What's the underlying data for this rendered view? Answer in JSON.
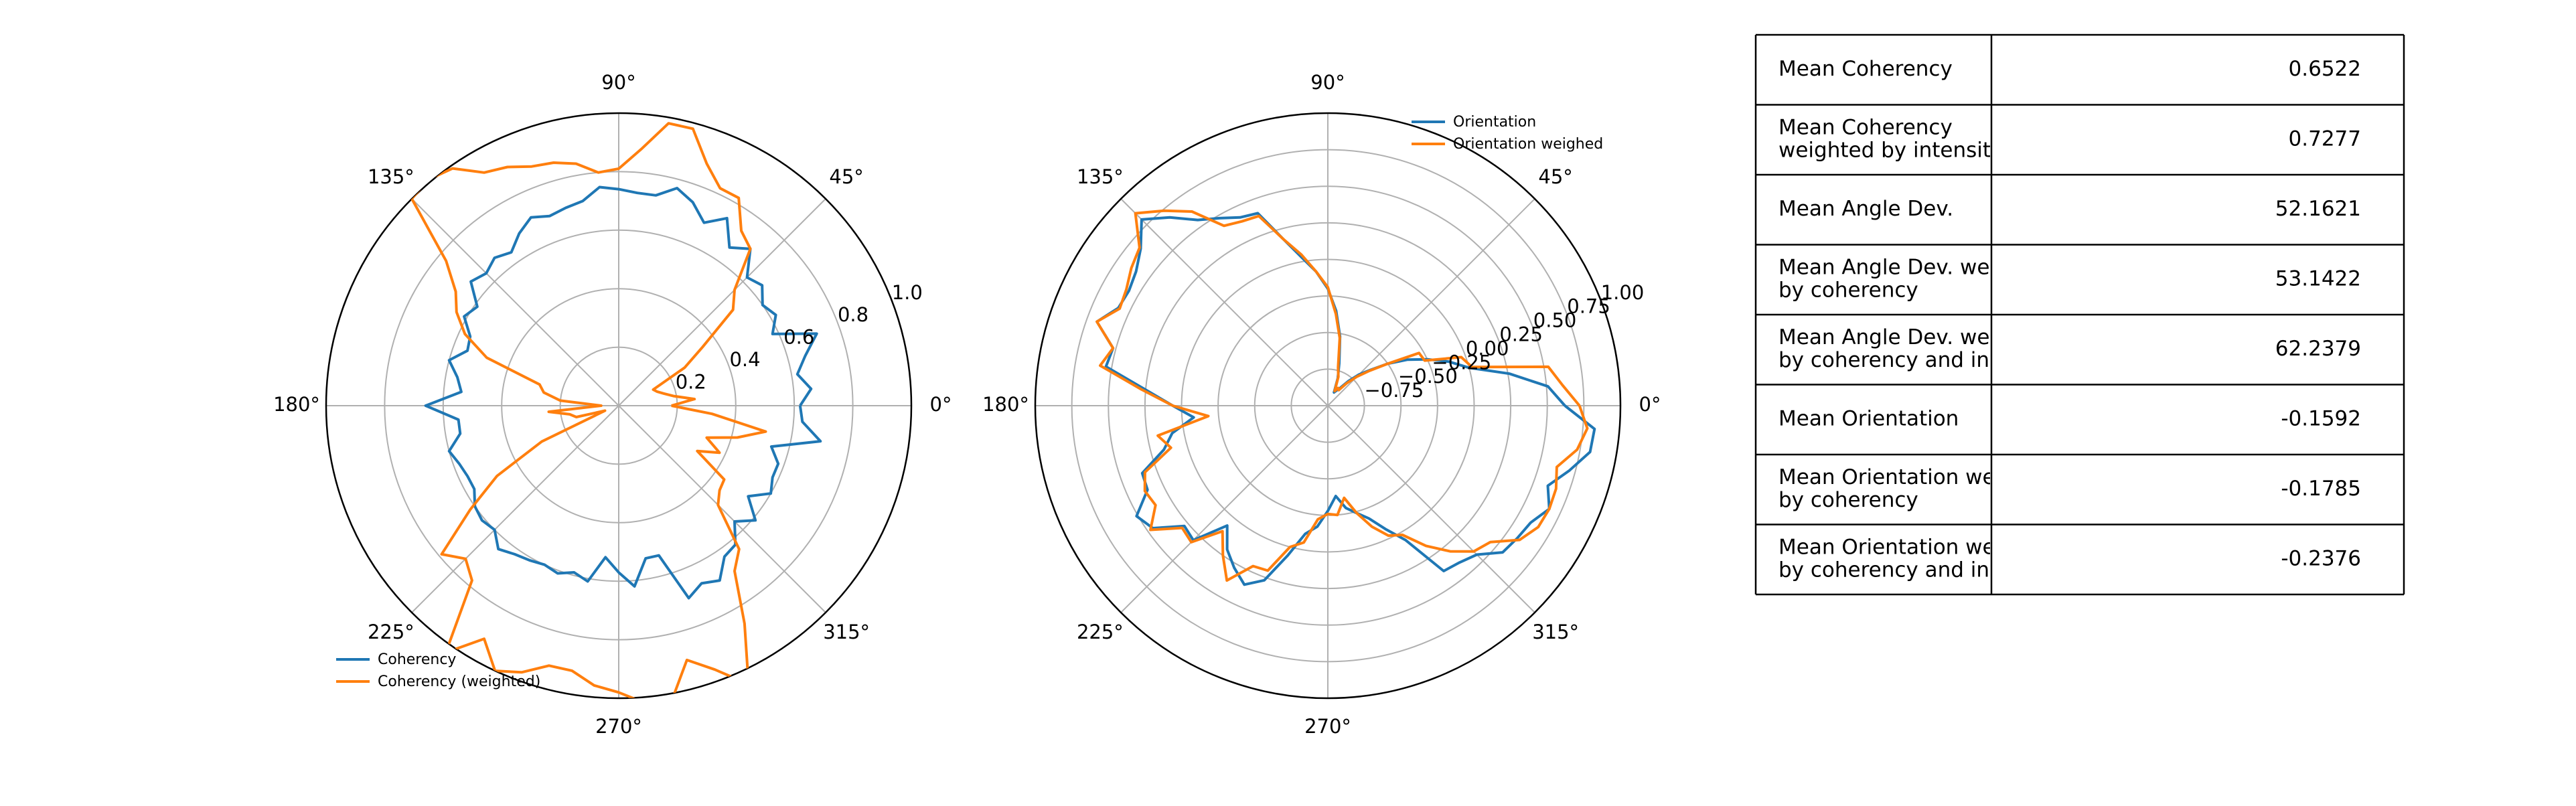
{
  "chart_data": [
    {
      "type": "line",
      "projection": "polar",
      "theta_unit": "degrees",
      "angle_tick_labels": [
        "0°",
        "45°",
        "90°",
        "135°",
        "180°",
        "225°",
        "270°",
        "315°"
      ],
      "radial_tick_labels": [
        "0.2",
        "0.4",
        "0.6",
        "0.8",
        "1.0"
      ],
      "rlim": [
        0,
        1.0
      ],
      "grid": true,
      "legend_position": "lower-left",
      "series": [
        {
          "name": "Coherency",
          "color": "#1f77b4",
          "theta": [
            0,
            5,
            10,
            15,
            20,
            25,
            30,
            35,
            40,
            45,
            50,
            55,
            60,
            65,
            70,
            75,
            80,
            85,
            90,
            95,
            100,
            105,
            110,
            115,
            120,
            125,
            130,
            135,
            140,
            145,
            150,
            155,
            160,
            165,
            170,
            175,
            180,
            185,
            190,
            195,
            200,
            205,
            210,
            215,
            220,
            225,
            230,
            235,
            240,
            245,
            250,
            255,
            260,
            265,
            270,
            275,
            280,
            285,
            290,
            295,
            300,
            305,
            310,
            315,
            320,
            325,
            330,
            335,
            340,
            345,
            350,
            355
          ],
          "r": [
            0.62,
            0.66,
            0.62,
            0.66,
            0.72,
            0.58,
            0.62,
            0.6,
            0.64,
            0.62,
            0.7,
            0.66,
            0.74,
            0.69,
            0.74,
            0.77,
            0.73,
            0.73,
            0.74,
            0.75,
            0.71,
            0.7,
            0.69,
            0.71,
            0.68,
            0.64,
            0.66,
            0.64,
            0.66,
            0.59,
            0.61,
            0.56,
            0.55,
            0.6,
            0.56,
            0.54,
            0.66,
            0.55,
            0.55,
            0.6,
            0.58,
            0.57,
            0.57,
            0.6,
            0.61,
            0.6,
            0.64,
            0.62,
            0.61,
            0.6,
            0.61,
            0.59,
            0.61,
            0.52,
            0.57,
            0.62,
            0.53,
            0.53,
            0.7,
            0.67,
            0.69,
            0.63,
            0.62,
            0.56,
            0.61,
            0.54,
            0.6,
            0.58,
            0.58,
            0.54,
            0.7,
            0.63
          ]
        },
        {
          "name": "Coherency (weighted)",
          "color": "#ff7f0e",
          "theta": [
            0,
            5,
            10,
            15,
            20,
            25,
            30,
            35,
            40,
            45,
            50,
            55,
            60,
            65,
            70,
            75,
            80,
            85,
            90,
            95,
            100,
            105,
            110,
            115,
            120,
            125,
            130,
            135,
            140,
            145,
            150,
            155,
            160,
            165,
            170,
            175,
            180,
            185,
            190,
            195,
            200,
            205,
            210,
            215,
            220,
            225,
            230,
            235,
            240,
            245,
            250,
            255,
            260,
            265,
            270,
            275,
            280,
            285,
            290,
            295,
            300,
            305,
            310,
            315,
            320,
            325,
            330,
            335,
            340,
            345,
            350,
            355
          ],
          "r": [
            0.18,
            0.26,
            0.19,
            0.16,
            0.14,
            0.13,
            0.26,
            0.35,
            0.51,
            0.56,
            0.7,
            0.73,
            0.82,
            0.82,
            0.88,
            0.98,
            0.98,
            0.88,
            0.81,
            0.8,
            0.84,
            0.86,
            0.87,
            0.9,
            0.92,
            0.99,
            1.01,
            1.0,
            0.77,
            0.68,
            0.64,
            0.58,
            0.48,
            0.28,
            0.26,
            0.2,
            0.06,
            0.24,
            0.17,
            0.15,
            0.05,
            0.29,
            0.48,
            0.62,
            0.79,
            0.74,
            0.78,
            1.03,
            0.92,
            1.0,
            0.97,
            0.92,
            0.92,
            0.96,
            0.98,
            1.02,
            1.03,
            0.9,
            0.96,
            1.05,
            0.86,
            0.69,
            0.64,
            0.48,
            0.45,
            0.44,
            0.31,
            0.38,
            0.32,
            0.42,
            0.51,
            0.32
          ]
        }
      ]
    },
    {
      "type": "line",
      "projection": "polar",
      "theta_unit": "degrees",
      "angle_tick_labels": [
        "0°",
        "45°",
        "90°",
        "135°",
        "180°",
        "225°",
        "270°",
        "315°"
      ],
      "radial_tick_labels": [
        "−0.75",
        "−0.50",
        "−0.25",
        "0.00",
        "0.25",
        "0.50",
        "0.75",
        "1.00"
      ],
      "rlim": [
        -1.0,
        1.0
      ],
      "grid": true,
      "legend_position": "top-right",
      "series": [
        {
          "name": "Orientation",
          "color": "#1f77b4",
          "theta": [
            0,
            5,
            10,
            15,
            20,
            25,
            30,
            35,
            40,
            45,
            50,
            55,
            60,
            65,
            70,
            75,
            80,
            85,
            90,
            95,
            100,
            105,
            110,
            115,
            120,
            125,
            130,
            135,
            140,
            145,
            150,
            155,
            160,
            165,
            170,
            175,
            180,
            185,
            190,
            195,
            200,
            205,
            210,
            215,
            220,
            225,
            230,
            235,
            240,
            245,
            250,
            255,
            260,
            265,
            270,
            275,
            280,
            285,
            290,
            295,
            300,
            305,
            310,
            315,
            320,
            325,
            330,
            335,
            340,
            345,
            350,
            355
          ],
          "r": [
            0.62,
            0.51,
            0.26,
            0.0,
            -0.12,
            -0.25,
            -0.37,
            -0.5,
            -0.62,
            -0.7,
            -0.78,
            -0.85,
            -0.88,
            -0.9,
            -0.8,
            -0.7,
            -0.52,
            -0.35,
            -0.2,
            -0.08,
            0.03,
            0.18,
            0.4,
            0.42,
            0.48,
            0.55,
            0.68,
            0.8,
            0.67,
            0.6,
            0.57,
            0.58,
            0.68,
            0.52,
            0.54,
            0.25,
            0.06,
            -0.08,
            0.08,
            0.16,
            0.35,
            0.36,
            0.51,
            0.46,
            0.28,
            0.3,
            0.07,
            0.2,
            0.28,
            0.35,
            0.27,
            0.06,
            -0.11,
            -0.17,
            -0.28,
            -0.38,
            -0.29,
            -0.24,
            -0.18,
            -0.07,
            0.06,
            0.38,
            0.4,
            0.44,
            0.56,
            0.58,
            0.6,
            0.67,
            0.6,
            0.71,
            0.82,
            0.83
          ]
        },
        {
          "name": "Orientation weighed",
          "color": "#ff7f0e",
          "theta": [
            0,
            5,
            10,
            15,
            20,
            25,
            30,
            35,
            40,
            45,
            50,
            55,
            60,
            65,
            70,
            75,
            80,
            85,
            90,
            95,
            100,
            105,
            110,
            115,
            120,
            125,
            130,
            135,
            140,
            145,
            150,
            155,
            160,
            165,
            170,
            175,
            180,
            185,
            190,
            195,
            200,
            205,
            210,
            215,
            220,
            225,
            230,
            235,
            240,
            245,
            250,
            255,
            260,
            265,
            270,
            275,
            280,
            285,
            290,
            295,
            300,
            305,
            310,
            315,
            320,
            325,
            330,
            335,
            340,
            345,
            350,
            355
          ],
          "r": [
            0.72,
            0.61,
            0.53,
            0.02,
            -0.03,
            -0.27,
            -0.28,
            -0.5,
            -0.63,
            -0.72,
            -0.8,
            -0.87,
            -0.86,
            -0.89,
            -0.79,
            -0.73,
            -0.53,
            -0.37,
            -0.19,
            -0.08,
            0.05,
            0.18,
            0.38,
            0.39,
            0.42,
            0.62,
            0.74,
            0.86,
            0.68,
            0.64,
            0.59,
            0.57,
            0.68,
            0.52,
            0.58,
            0.28,
            0.06,
            -0.18,
            0.18,
            0.11,
            0.33,
            0.38,
            0.36,
            0.48,
            0.3,
            0.32,
            0.12,
            0.25,
            0.38,
            0.21,
            0.2,
            0.0,
            -0.05,
            -0.22,
            -0.26,
            -0.25,
            -0.36,
            -0.24,
            -0.12,
            -0.02,
            0.02,
            0.17,
            0.3,
            0.41,
            0.45,
            0.6,
            0.66,
            0.67,
            0.66,
            0.62,
            0.73,
            0.78
          ]
        }
      ]
    }
  ],
  "stats_table": {
    "rows": [
      {
        "label_lines": [
          "Mean Coherency"
        ],
        "value": "0.6522"
      },
      {
        "label_lines": [
          "Mean Coherency",
          "weighted by intensit"
        ],
        "value": "0.7277"
      },
      {
        "label_lines": [
          "Mean Angle Dev."
        ],
        "value": "52.1621"
      },
      {
        "label_lines": [
          "Mean Angle Dev. we",
          "by coherency"
        ],
        "value": "53.1422"
      },
      {
        "label_lines": [
          "Mean Angle Dev. we",
          "by coherency and int"
        ],
        "value": "62.2379"
      },
      {
        "label_lines": [
          "Mean Orientation"
        ],
        "value": "-0.1592"
      },
      {
        "label_lines": [
          "Mean Orientation we",
          "by coherency"
        ],
        "value": "-0.1785"
      },
      {
        "label_lines": [
          "Mean Orientation we",
          "by coherency and int"
        ],
        "value": "-0.2376"
      }
    ]
  }
}
